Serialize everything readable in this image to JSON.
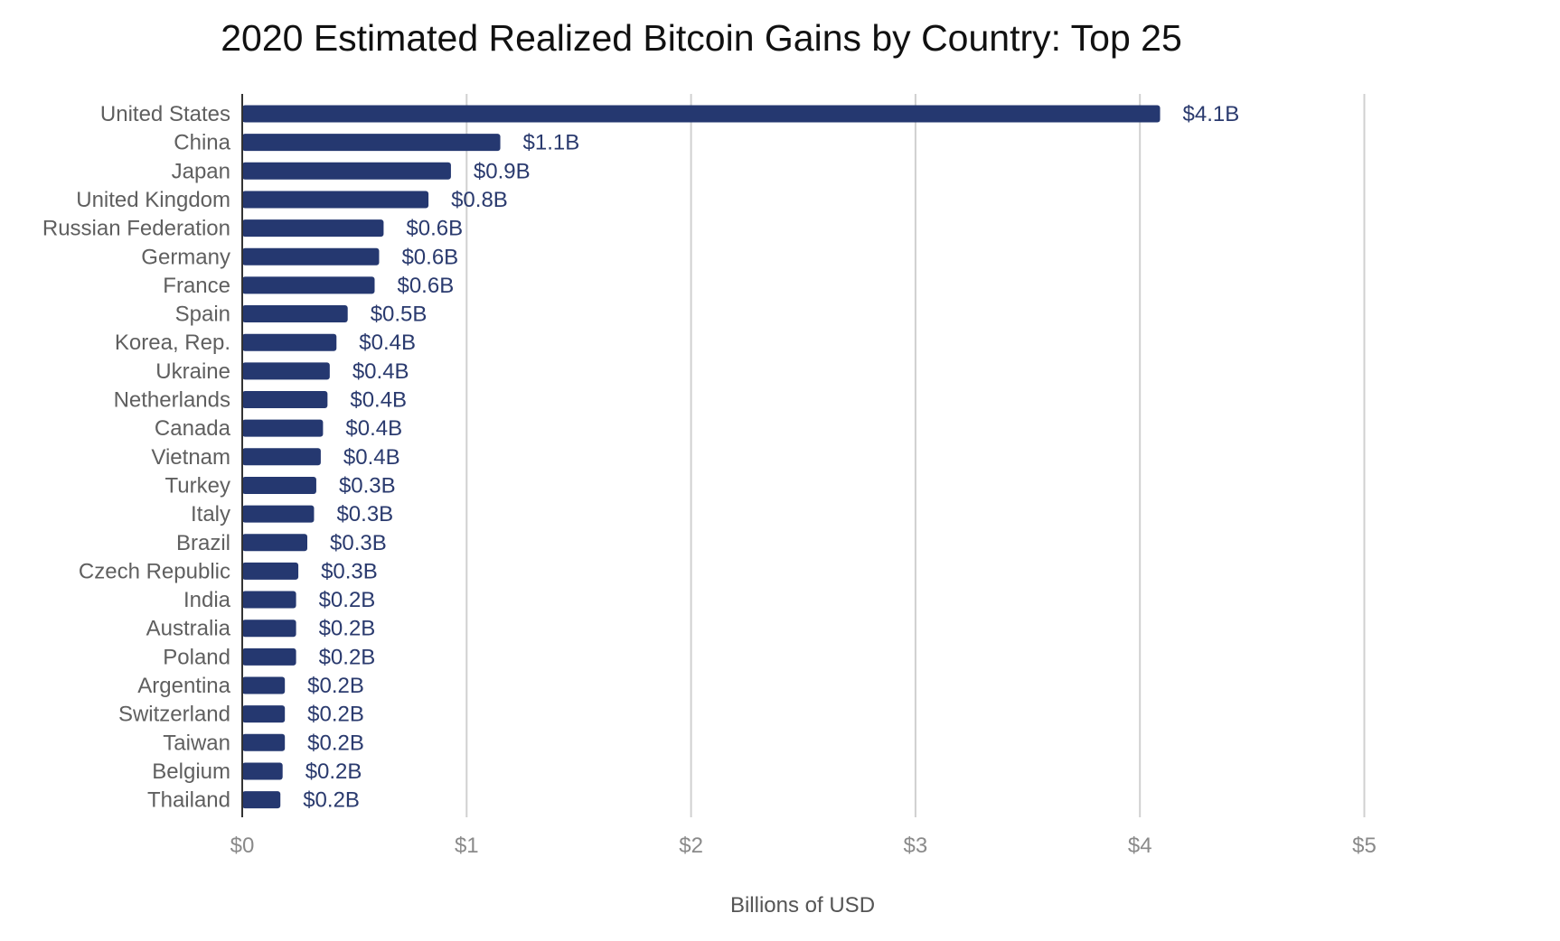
{
  "chart_data": {
    "type": "bar",
    "orientation": "horizontal",
    "title": "2020 Estimated Realized Bitcoin Gains by Country: Top 25",
    "xlabel": "Billions of USD",
    "ylabel": "",
    "xlim": [
      0,
      5
    ],
    "x_ticks": [
      {
        "value": 0,
        "label": "$0"
      },
      {
        "value": 1,
        "label": "$1"
      },
      {
        "value": 2,
        "label": "$2"
      },
      {
        "value": 3,
        "label": "$3"
      },
      {
        "value": 4,
        "label": "$4"
      },
      {
        "value": 5,
        "label": "$5"
      }
    ],
    "grid": true,
    "bar_color": "#253870",
    "categories": [
      "United States",
      "China",
      "Japan",
      "United Kingdom",
      "Russian Federation",
      "Germany",
      "France",
      "Spain",
      "Korea, Rep.",
      "Ukraine",
      "Netherlands",
      "Canada",
      "Vietnam",
      "Turkey",
      "Italy",
      "Brazil",
      "Czech Republic",
      "India",
      "Australia",
      "Poland",
      "Argentina",
      "Switzerland",
      "Taiwan",
      "Belgium",
      "Thailand"
    ],
    "values": [
      4.09,
      1.15,
      0.93,
      0.83,
      0.63,
      0.61,
      0.59,
      0.47,
      0.42,
      0.39,
      0.38,
      0.36,
      0.35,
      0.33,
      0.32,
      0.29,
      0.25,
      0.24,
      0.24,
      0.24,
      0.19,
      0.19,
      0.19,
      0.18,
      0.17
    ],
    "value_labels": [
      "$4.1B",
      "$1.1B",
      "$0.9B",
      "$0.8B",
      "$0.6B",
      "$0.6B",
      "$0.6B",
      "$0.5B",
      "$0.4B",
      "$0.4B",
      "$0.4B",
      "$0.4B",
      "$0.4B",
      "$0.3B",
      "$0.3B",
      "$0.3B",
      "$0.3B",
      "$0.2B",
      "$0.2B",
      "$0.2B",
      "$0.2B",
      "$0.2B",
      "$0.2B",
      "$0.2B",
      "$0.2B"
    ]
  }
}
